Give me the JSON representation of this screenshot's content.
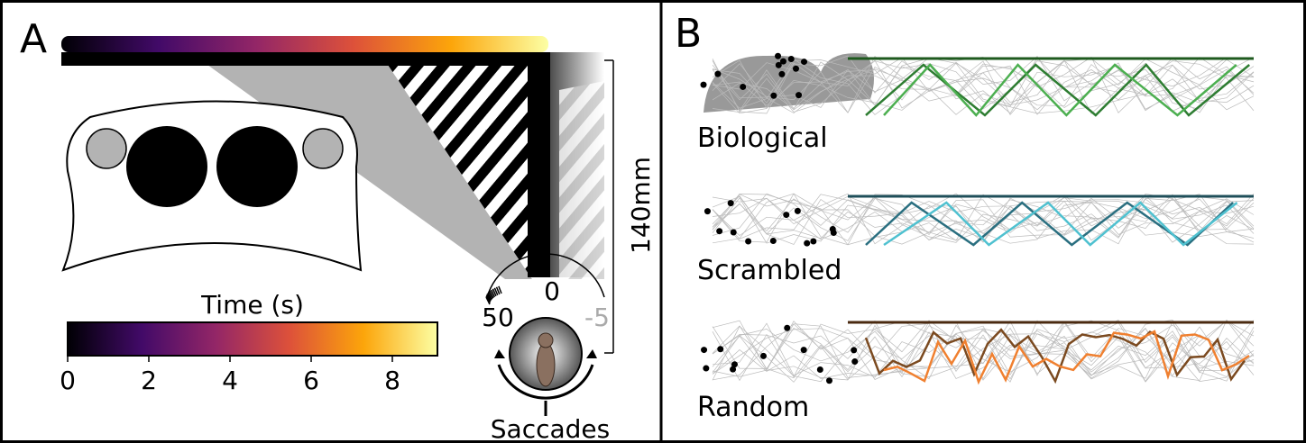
{
  "panel_a": {
    "label": "A",
    "colorbar": {
      "title": "Time (s)",
      "ticks": [
        0,
        2,
        4,
        6,
        8
      ]
    },
    "scale": "140mm",
    "dial": {
      "labels": [
        "0",
        "50",
        "-5"
      ]
    },
    "caption": "Saccades"
  },
  "panel_b": {
    "label": "B",
    "conditions": [
      "Biological",
      "Scrambled",
      "Random"
    ]
  }
}
